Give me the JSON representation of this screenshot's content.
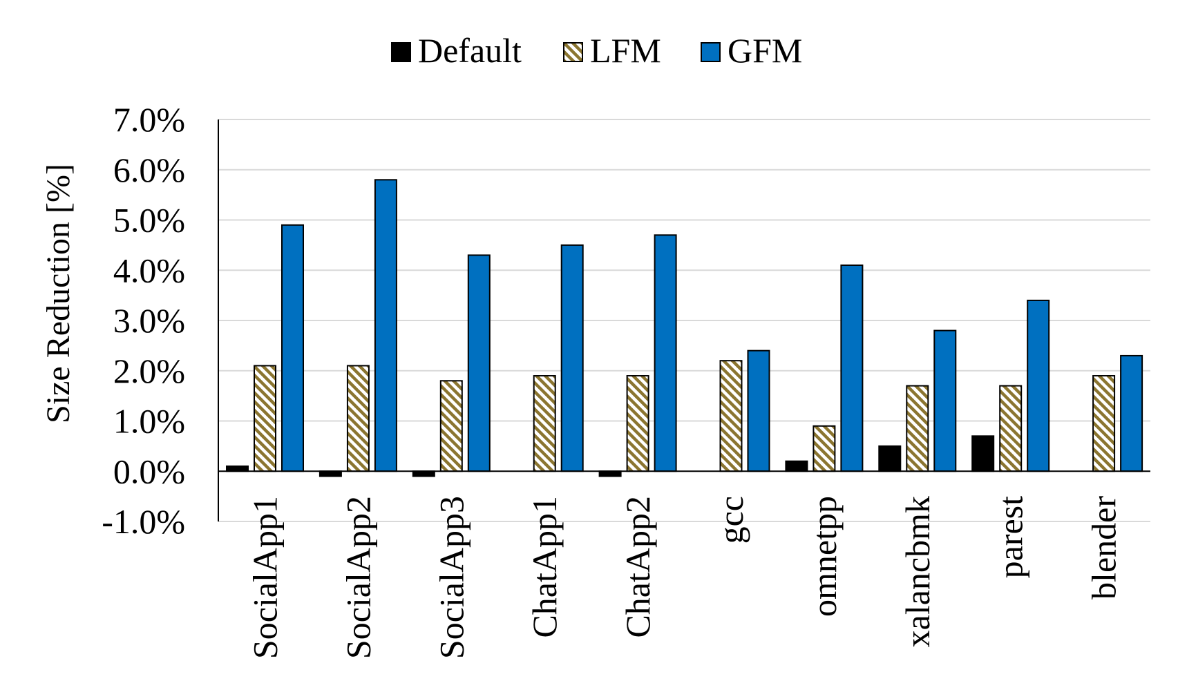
{
  "chart_data": {
    "type": "bar",
    "ylabel": "Size Reduction [%]",
    "ylim": [
      -1.0,
      7.0
    ],
    "ytick_step": 1.0,
    "yticks": [
      "-1.0%",
      "0.0%",
      "1.0%",
      "2.0%",
      "3.0%",
      "4.0%",
      "5.0%",
      "6.0%",
      "7.0%"
    ],
    "grid": true,
    "legend_position": "top-center",
    "categories": [
      "SocialApp1",
      "SocialApp2",
      "SocialApp3",
      "ChatApp1",
      "ChatApp2",
      "gcc",
      "omnetpp",
      "xalancbmk",
      "parest",
      "blender"
    ],
    "series": [
      {
        "name": "Default",
        "color": "#000000",
        "pattern": "solid",
        "values": [
          0.1,
          -0.1,
          -0.1,
          0.0,
          -0.1,
          0.0,
          0.2,
          0.5,
          0.7,
          0.0
        ]
      },
      {
        "name": "LFM",
        "color": "#8B7530",
        "pattern": "diagonal-stripes",
        "values": [
          2.1,
          2.1,
          1.8,
          1.9,
          1.9,
          2.2,
          0.9,
          1.7,
          1.7,
          1.9
        ]
      },
      {
        "name": "GFM",
        "color": "#0070C0",
        "pattern": "solid",
        "values": [
          4.9,
          5.8,
          4.3,
          4.5,
          4.7,
          2.4,
          4.1,
          2.8,
          3.4,
          2.3
        ]
      }
    ]
  }
}
